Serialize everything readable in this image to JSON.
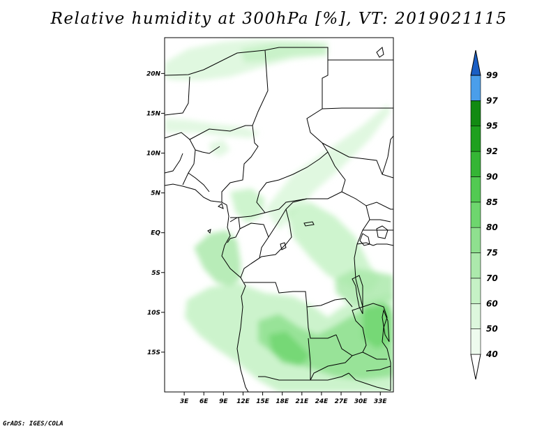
{
  "title": "Relative humidity at 300hPa [%], VT: 2019021115",
  "credit": "GrADS: IGES/COLA",
  "map": {
    "lon_range": [
      0,
      35
    ],
    "lat_range": [
      -20,
      24.5
    ],
    "lat_ticks": [
      {
        "value": 20,
        "label": "20N"
      },
      {
        "value": 15,
        "label": "15N"
      },
      {
        "value": 10,
        "label": "10N"
      },
      {
        "value": 5,
        "label": "5N"
      },
      {
        "value": 0,
        "label": "EQ"
      },
      {
        "value": -5,
        "label": "5S"
      },
      {
        "value": -10,
        "label": "10S"
      },
      {
        "value": -15,
        "label": "15S"
      }
    ],
    "lon_ticks": [
      {
        "value": 3,
        "label": "3E"
      },
      {
        "value": 6,
        "label": "6E"
      },
      {
        "value": 9,
        "label": "9E"
      },
      {
        "value": 12,
        "label": "12E"
      },
      {
        "value": 15,
        "label": "15E"
      },
      {
        "value": 18,
        "label": "18E"
      },
      {
        "value": 21,
        "label": "21E"
      },
      {
        "value": 24,
        "label": "24E"
      },
      {
        "value": 27,
        "label": "27E"
      },
      {
        "value": 30,
        "label": "30E"
      },
      {
        "value": 33,
        "label": "33E"
      }
    ]
  },
  "colorbar": {
    "levels": [
      {
        "label": "40",
        "color": "#eefbee"
      },
      {
        "label": "50",
        "color": "#ddf7dd"
      },
      {
        "label": "60",
        "color": "#c6f2c6"
      },
      {
        "label": "70",
        "color": "#ace9ac"
      },
      {
        "label": "75",
        "color": "#8fe08f"
      },
      {
        "label": "80",
        "color": "#6ed66e"
      },
      {
        "label": "85",
        "color": "#52ca52"
      },
      {
        "label": "90",
        "color": "#35b535"
      },
      {
        "label": "92",
        "color": "#1ea01e"
      },
      {
        "label": "95",
        "color": "#128a12"
      },
      {
        "label": "97",
        "color": "#4a9eea"
      },
      {
        "label": "99",
        "color": "#2a78d8"
      }
    ],
    "over_color": "#1a5ec4",
    "under_color": "#ffffff"
  }
}
